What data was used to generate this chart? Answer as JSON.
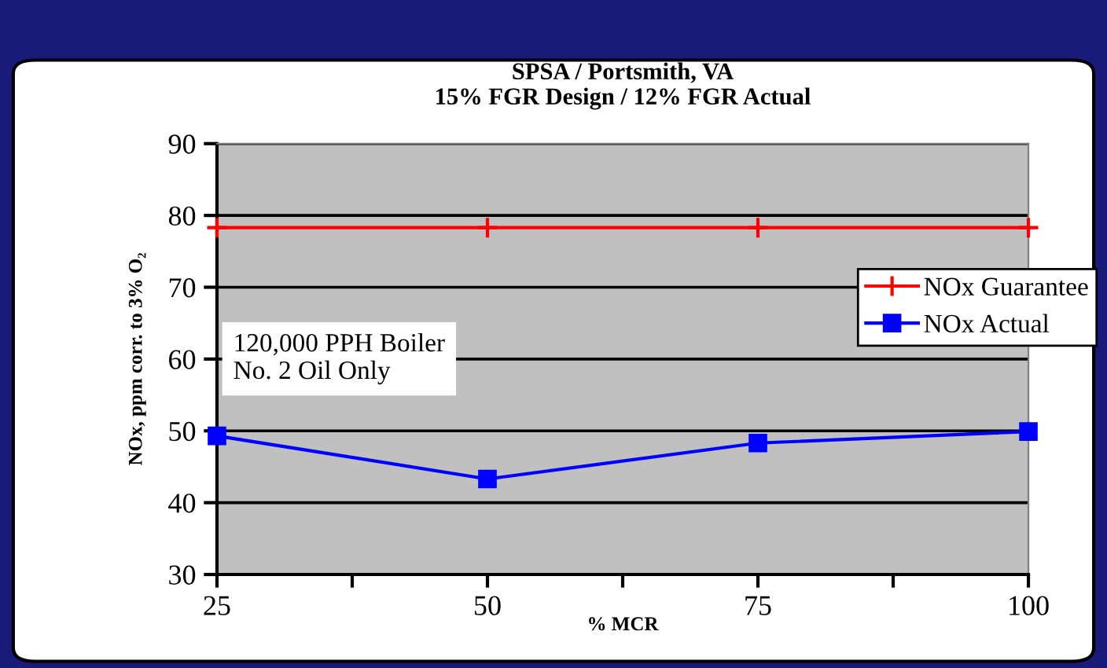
{
  "chart_data": {
    "type": "line",
    "title": "SPSA / Portsmith, VA\n15% FGR Design / 12% FGR Actual",
    "xlabel": "% MCR",
    "ylabel": "NOx, ppm corr. to 3% O₂",
    "x": [
      25,
      50,
      75,
      100
    ],
    "series": [
      {
        "name": "NOx Guarantee",
        "color": "#ff0000",
        "values": [
          78.3,
          78.3,
          78.3,
          78.3
        ],
        "marker": "cross"
      },
      {
        "name": "NOx Actual",
        "color": "#0000ff",
        "values": [
          49.3,
          43.3,
          48.3,
          49.9
        ],
        "marker": "square"
      }
    ],
    "xlim": [
      25,
      100
    ],
    "xticks": [
      25,
      {
        "value": 37.5,
        "label": null
      },
      50,
      {
        "value": 62.5,
        "label": null
      },
      75,
      {
        "value": 87.5,
        "label": null
      },
      100
    ],
    "ylim": [
      30,
      90
    ],
    "yticks": [
      30,
      40,
      50,
      60,
      70,
      80,
      90
    ],
    "grid": "y",
    "legend": "right",
    "line_style": "solid",
    "annotations": [
      "120,000 PPH Boiler\nNo. 2 Oil Only"
    ]
  }
}
